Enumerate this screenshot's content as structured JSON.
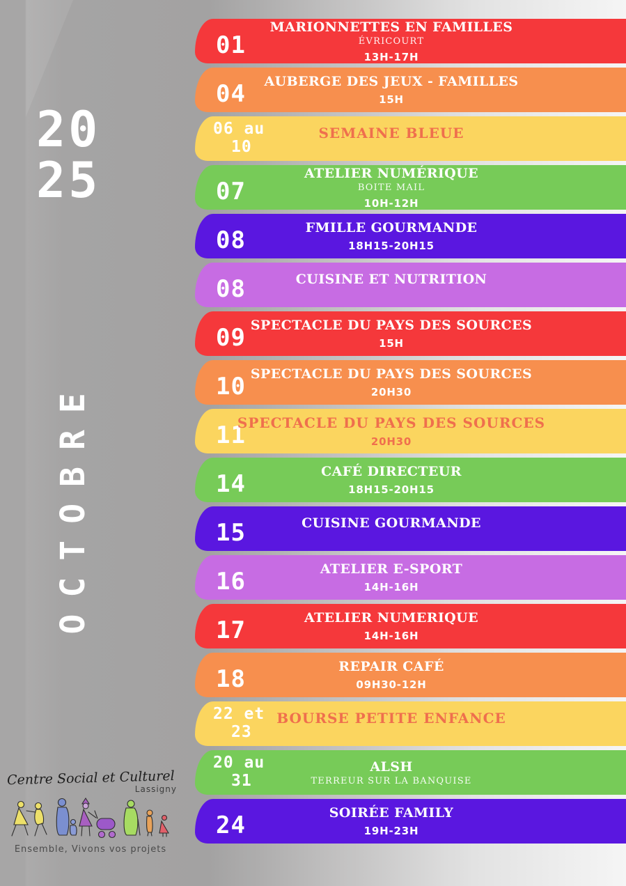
{
  "sidebar": {
    "year_line1": "20",
    "year_line2": "25",
    "month": "OCTOBRE"
  },
  "logo": {
    "name": "Centre Social et Culturel",
    "town": "Lassigny",
    "tagline": "Ensemble, Vivons vos projets",
    "figure_colors": [
      "#ede06a",
      "#7b8fd0",
      "#a85fc0",
      "#9c59c9",
      "#a7db62",
      "#e8a25a",
      "#e2606a"
    ]
  },
  "colors": {
    "red": "#F5383B",
    "orange": "#F78F4E",
    "yellow": "#FBD55F",
    "green": "#77CB58",
    "violet": "#5A17E0",
    "orchid": "#C76CE3",
    "accent_text": "#EF6F4D"
  },
  "events": [
    {
      "dates": [
        "01"
      ],
      "color": "red",
      "title": "MARIONNETTES EN FAMILLES",
      "subtitle": "ÉVRICOURT",
      "time": "13H-17H"
    },
    {
      "dates": [
        "04"
      ],
      "color": "orange",
      "title": "AUBERGE DES JEUX - FAMILLES",
      "time": "15H"
    },
    {
      "dates": [
        "06 au",
        "10"
      ],
      "color": "yellow",
      "title": "SEMAINE BLEUE"
    },
    {
      "dates": [
        "07"
      ],
      "color": "green",
      "title": "ATELIER NUMÉRIQUE",
      "subtitle": "BOITE MAIL",
      "time": "10H-12H"
    },
    {
      "dates": [
        "08"
      ],
      "color": "violet",
      "title": "FMILLE GOURMANDE",
      "time": "18H15-20H15"
    },
    {
      "dates": [
        "08"
      ],
      "color": "orchid",
      "title": "CUISINE ET NUTRITION"
    },
    {
      "dates": [
        "09"
      ],
      "color": "red",
      "title": "SPECTACLE DU PAYS DES SOURCES",
      "time": "15H"
    },
    {
      "dates": [
        "10"
      ],
      "color": "orange",
      "title": "SPECTACLE DU PAYS DES SOURCES",
      "time": "20H30"
    },
    {
      "dates": [
        "11"
      ],
      "color": "yellow",
      "title": "SPECTACLE DU PAYS DES SOURCES",
      "time": "20H30"
    },
    {
      "dates": [
        "14"
      ],
      "color": "green",
      "title": "CAFÉ DIRECTEUR",
      "time": "18H15-20H15"
    },
    {
      "dates": [
        "15"
      ],
      "color": "violet",
      "title": "CUISINE GOURMANDE"
    },
    {
      "dates": [
        "16"
      ],
      "color": "orchid",
      "title": "ATELIER E-SPORT",
      "time": "14H-16H"
    },
    {
      "dates": [
        "17"
      ],
      "color": "red",
      "title": "ATELIER NUMERIQUE",
      "time": "14H-16H"
    },
    {
      "dates": [
        "18"
      ],
      "color": "orange",
      "title": "REPAIR CAFÉ",
      "time": "09H30-12H"
    },
    {
      "dates": [
        "22 et",
        "23"
      ],
      "color": "yellow",
      "title": "BOURSE PETITE ENFANCE"
    },
    {
      "dates": [
        "20 au",
        "31"
      ],
      "color": "green",
      "title": "ALSH",
      "subtitle": "TERREUR SUR LA BANQUISE"
    },
    {
      "dates": [
        "24"
      ],
      "color": "violet",
      "title": "SOIRÉE FAMILY",
      "time": "19H-23H"
    }
  ]
}
